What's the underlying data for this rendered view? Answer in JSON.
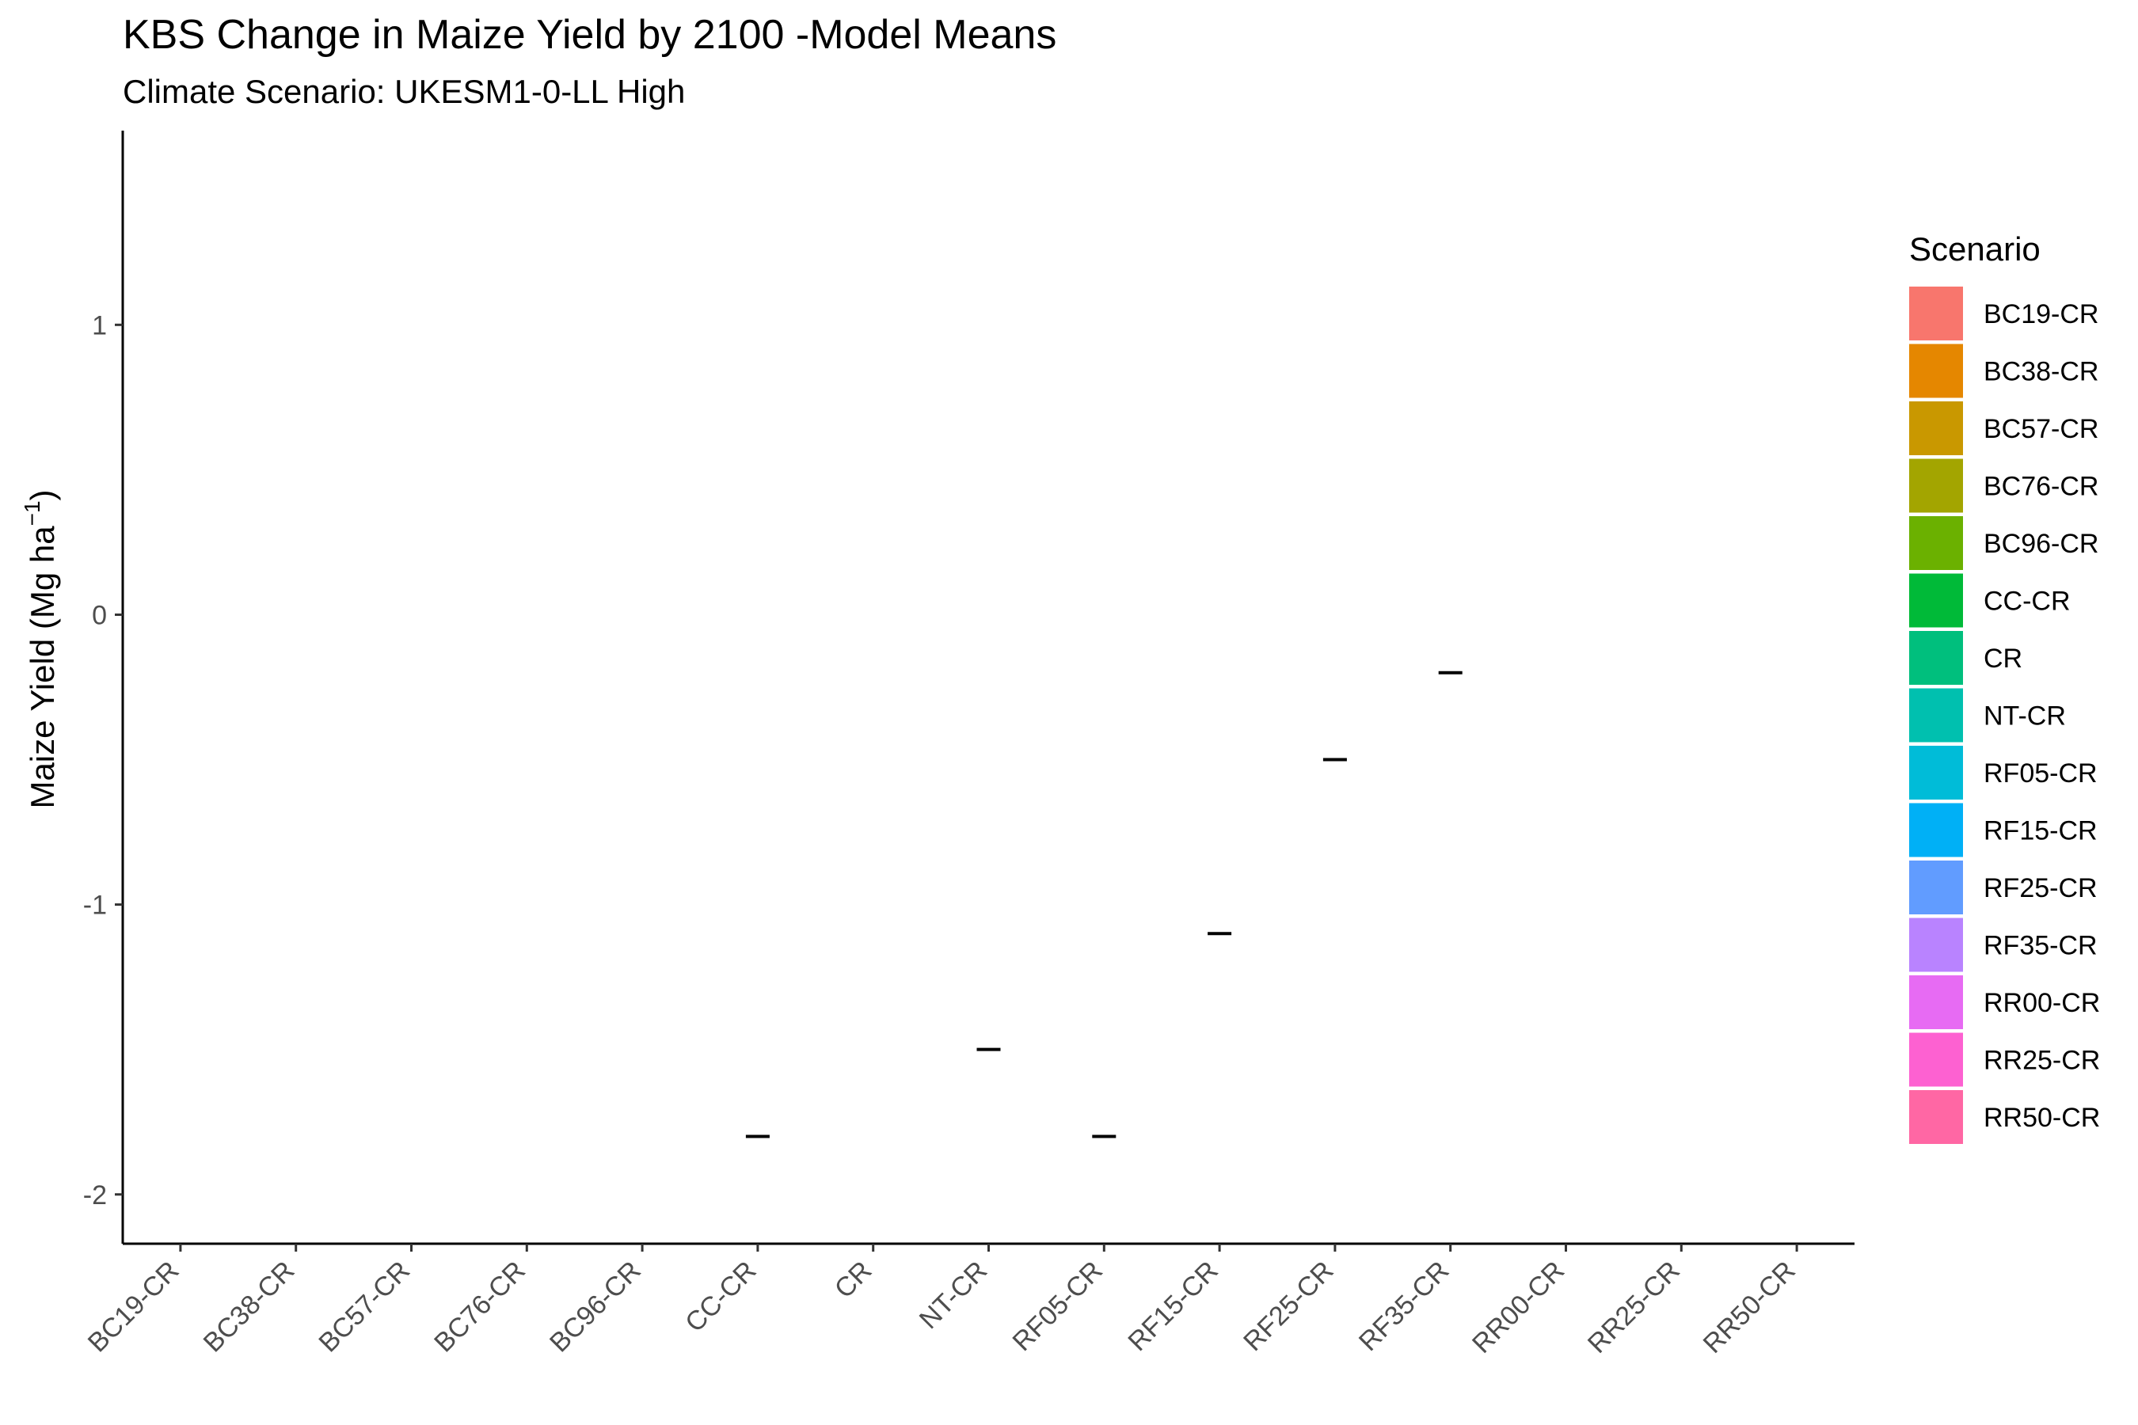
{
  "chart_data": {
    "type": "scatter",
    "title": "KBS Change in Maize Yield by  2100 -Model Means",
    "subtitle": "Climate Scenario: UKESM1-0-LL High",
    "ylabel": "Maize Yield (Mg ha",
    "ylabel_superscript": "−1",
    "ylabel_close": ")",
    "xlabel": "",
    "ylim": [
      -2.17,
      1.67
    ],
    "y_ticks": [
      1,
      0,
      -1,
      -2
    ],
    "y_tick_labels": [
      "1",
      "0",
      "-1",
      "-2"
    ],
    "categories": [
      "BC19-CR",
      "BC38-CR",
      "BC57-CR",
      "BC76-CR",
      "BC96-CR",
      "CC-CR",
      "CR",
      "NT-CR",
      "RF05-CR",
      "RF15-CR",
      "RF25-CR",
      "RF35-CR",
      "RR00-CR",
      "RR25-CR",
      "RR50-CR"
    ],
    "values": [
      null,
      null,
      null,
      null,
      null,
      -1.8,
      null,
      -1.5,
      -1.8,
      -1.1,
      -0.5,
      -0.2,
      null,
      null,
      null
    ],
    "legend": {
      "title": "Scenario",
      "position": "right",
      "entries": [
        {
          "label": "BC19-CR",
          "color": "#F8766D"
        },
        {
          "label": "BC38-CR",
          "color": "#E58700"
        },
        {
          "label": "BC57-CR",
          "color": "#C99800"
        },
        {
          "label": "BC76-CR",
          "color": "#A3A500"
        },
        {
          "label": "BC96-CR",
          "color": "#6BB100"
        },
        {
          "label": "CC-CR",
          "color": "#00BA38"
        },
        {
          "label": "CR",
          "color": "#00BF7D"
        },
        {
          "label": "NT-CR",
          "color": "#00C0AF"
        },
        {
          "label": "RF05-CR",
          "color": "#00BCD8"
        },
        {
          "label": "RF15-CR",
          "color": "#00B0F6"
        },
        {
          "label": "RF25-CR",
          "color": "#619CFF"
        },
        {
          "label": "RF35-CR",
          "color": "#B983FF"
        },
        {
          "label": "RR00-CR",
          "color": "#E76BF3"
        },
        {
          "label": "RR25-CR",
          "color": "#FD61D1"
        },
        {
          "label": "RR50-CR",
          "color": "#FF67A4"
        }
      ]
    },
    "grid": false,
    "marker_color": "#000000"
  }
}
